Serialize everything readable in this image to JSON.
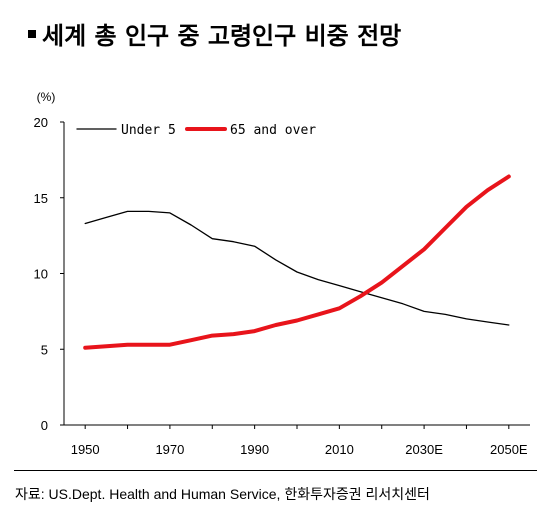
{
  "title": "세계 총 인구 중 고령인구 비중 전망",
  "source": "자료: US.Dept. Health and Human Service, 한화투자증권 리서치센터",
  "chart_data": {
    "type": "line",
    "title": "세계 총 인구 중 고령인구 비중 전망",
    "ylabel": "(%)",
    "xlabel": "",
    "ylim": [
      0,
      20
    ],
    "yticks": [
      0,
      5,
      10,
      15,
      20
    ],
    "xlim": [
      1945,
      2055
    ],
    "xticks": [
      1950,
      1970,
      1990,
      2010,
      2030,
      2050
    ],
    "xtick_labels": [
      "1950",
      "1970",
      "1990",
      "2010",
      "2030E",
      "2050E"
    ],
    "grid": false,
    "legend_position": "top-left",
    "series": [
      {
        "name": "Under 5",
        "color": "#000000",
        "x": [
          1950,
          1955,
          1960,
          1965,
          1970,
          1975,
          1980,
          1985,
          1990,
          1995,
          2000,
          2005,
          2010,
          2015,
          2020,
          2025,
          2030,
          2035,
          2040,
          2045,
          2050
        ],
        "values": [
          13.3,
          13.7,
          14.1,
          14.1,
          14.0,
          13.2,
          12.3,
          12.1,
          11.8,
          10.9,
          10.1,
          9.6,
          9.2,
          8.8,
          8.4,
          8.0,
          7.5,
          7.3,
          7.0,
          6.8,
          6.6
        ]
      },
      {
        "name": "65 and over",
        "color": "#e8141b",
        "x": [
          1950,
          1955,
          1960,
          1965,
          1970,
          1975,
          1980,
          1985,
          1990,
          1995,
          2000,
          2005,
          2010,
          2015,
          2020,
          2025,
          2030,
          2035,
          2040,
          2045,
          2050
        ],
        "values": [
          5.1,
          5.2,
          5.3,
          5.3,
          5.3,
          5.6,
          5.9,
          6.0,
          6.2,
          6.6,
          6.9,
          7.3,
          7.7,
          8.5,
          9.4,
          10.5,
          11.6,
          13.0,
          14.4,
          15.5,
          16.4
        ]
      }
    ]
  }
}
